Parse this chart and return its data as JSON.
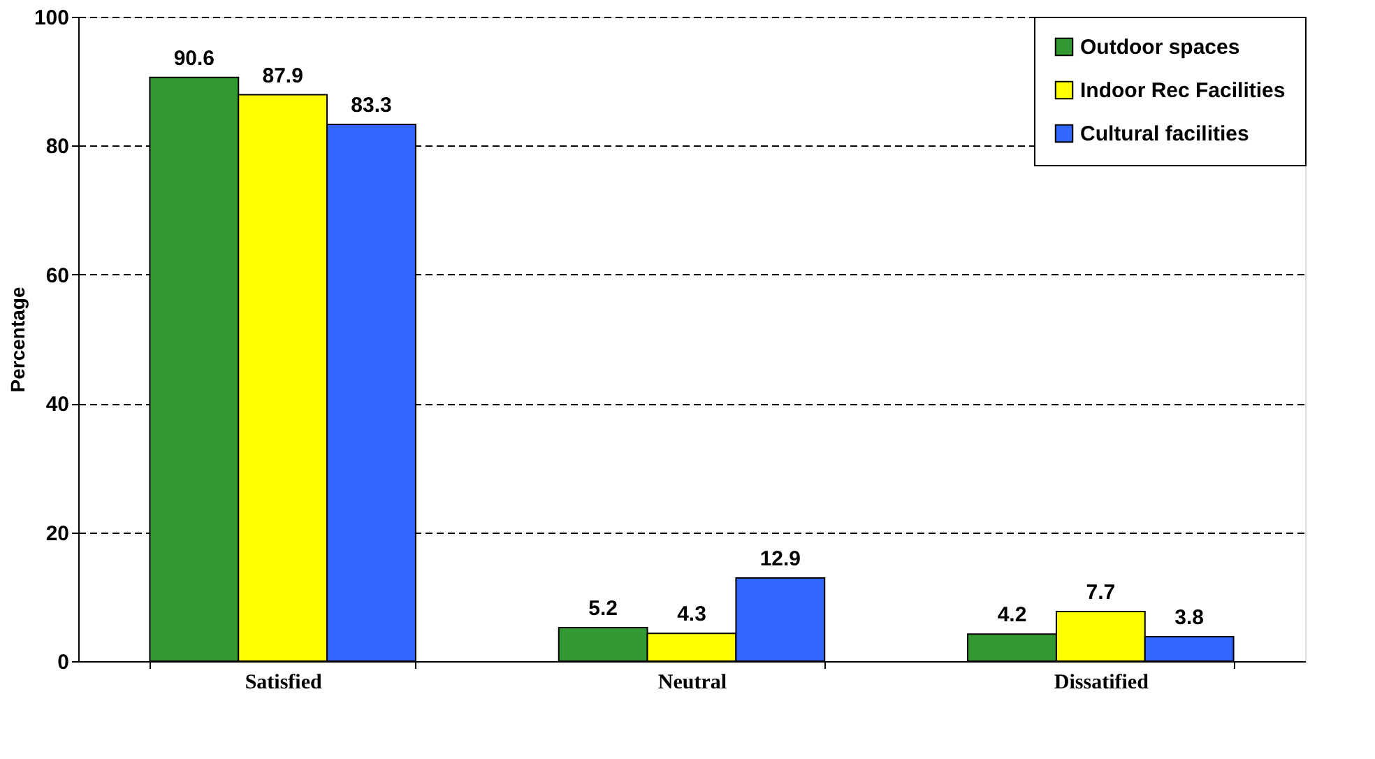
{
  "chart_data": {
    "type": "bar",
    "ylabel": "Percentage",
    "categories": [
      "Satisfied",
      "Neutral",
      "Dissatified"
    ],
    "series": [
      {
        "name": "Outdoor spaces",
        "color": "#339933",
        "values": [
          90.6,
          5.2,
          4.2
        ]
      },
      {
        "name": "Indoor Rec Facilities",
        "color": "#ffff00",
        "values": [
          87.9,
          4.3,
          7.7
        ]
      },
      {
        "name": "Cultural facilities",
        "color": "#3366ff",
        "values": [
          83.3,
          12.9,
          3.8
        ]
      }
    ],
    "ylim": [
      0,
      100
    ],
    "yticks": [
      0,
      20,
      40,
      60,
      80,
      100
    ],
    "grid": "y",
    "legend": "top right",
    "data_labels": true
  }
}
